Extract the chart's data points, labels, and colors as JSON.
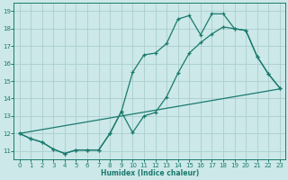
{
  "xlabel": "Humidex (Indice chaleur)",
  "bg_color": "#cce8e8",
  "grid_color": "#aacece",
  "line_color": "#1a7a6e",
  "xlim": [
    -0.5,
    23.5
  ],
  "ylim": [
    10.5,
    19.5
  ],
  "xticks": [
    0,
    1,
    2,
    3,
    4,
    5,
    6,
    7,
    8,
    9,
    10,
    11,
    12,
    13,
    14,
    15,
    16,
    17,
    18,
    19,
    20,
    21,
    22,
    23
  ],
  "yticks": [
    11,
    12,
    13,
    14,
    15,
    16,
    17,
    18,
    19
  ],
  "series1_x": [
    0,
    1,
    2,
    3,
    4,
    5,
    6,
    7,
    8,
    9,
    10,
    11,
    12,
    13,
    14,
    15,
    16,
    17,
    18,
    19,
    20,
    21,
    22,
    23
  ],
  "series1_y": [
    12.0,
    11.7,
    11.5,
    11.1,
    10.85,
    11.05,
    11.05,
    11.05,
    12.0,
    13.25,
    12.05,
    13.0,
    13.2,
    14.1,
    15.45,
    16.6,
    17.2,
    17.7,
    18.1,
    18.0,
    17.9,
    16.4,
    15.4,
    14.6
  ],
  "series2_x": [
    0,
    1,
    2,
    3,
    4,
    5,
    6,
    7,
    8,
    9,
    10,
    11,
    12,
    13,
    14,
    15,
    16,
    17,
    18,
    19,
    20,
    21,
    22,
    23
  ],
  "series2_y": [
    12.0,
    11.7,
    11.5,
    11.1,
    10.85,
    11.05,
    11.05,
    11.05,
    12.0,
    13.25,
    15.5,
    16.5,
    16.6,
    17.15,
    18.55,
    18.75,
    17.65,
    18.85,
    18.85,
    18.0,
    17.9,
    16.4,
    15.4,
    14.6
  ],
  "series3_x": [
    0,
    23
  ],
  "series3_y": [
    12.0,
    14.55
  ]
}
